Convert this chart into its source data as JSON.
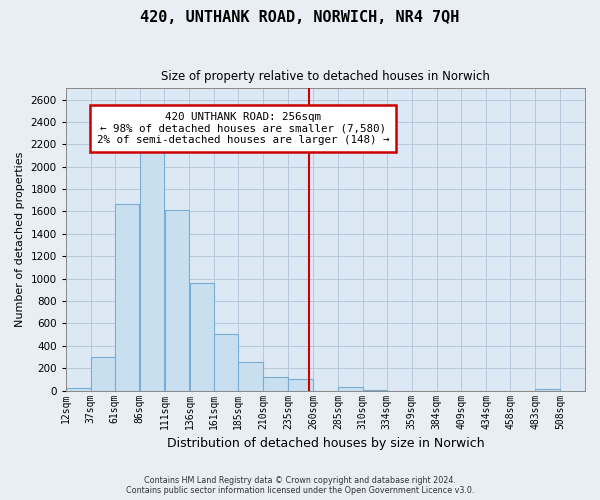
{
  "title": "420, UNTHANK ROAD, NORWICH, NR4 7QH",
  "subtitle": "Size of property relative to detached houses in Norwich",
  "xlabel": "Distribution of detached houses by size in Norwich",
  "ylabel": "Number of detached properties",
  "bar_left_edges": [
    12,
    37,
    61,
    86,
    111,
    136,
    161,
    185,
    210,
    235,
    260,
    285,
    310,
    334,
    359,
    384,
    409,
    434,
    458,
    483
  ],
  "bar_widths": [
    25,
    24,
    25,
    25,
    25,
    25,
    24,
    25,
    25,
    25,
    25,
    25,
    24,
    25,
    25,
    25,
    25,
    24,
    25,
    25
  ],
  "bar_heights": [
    20,
    300,
    1670,
    2150,
    1610,
    960,
    510,
    255,
    120,
    105,
    0,
    35,
    10,
    0,
    0,
    0,
    0,
    0,
    0,
    15
  ],
  "bar_color": "#c8dff0",
  "bar_edgecolor": "#7aadd4",
  "vline_x": 256,
  "vline_color": "#cc0000",
  "annotation_title": "420 UNTHANK ROAD: 256sqm",
  "annotation_line1": "← 98% of detached houses are smaller (7,580)",
  "annotation_line2": "2% of semi-detached houses are larger (148) →",
  "tick_labels": [
    "12sqm",
    "37sqm",
    "61sqm",
    "86sqm",
    "111sqm",
    "136sqm",
    "161sqm",
    "185sqm",
    "210sqm",
    "235sqm",
    "260sqm",
    "285sqm",
    "310sqm",
    "334sqm",
    "359sqm",
    "384sqm",
    "409sqm",
    "434sqm",
    "458sqm",
    "483sqm",
    "508sqm"
  ],
  "tick_positions": [
    12,
    37,
    61,
    86,
    111,
    136,
    161,
    185,
    210,
    235,
    260,
    285,
    310,
    334,
    359,
    384,
    409,
    434,
    458,
    483,
    508
  ],
  "ylim": [
    0,
    2700
  ],
  "xlim": [
    12,
    533
  ],
  "yticks": [
    0,
    200,
    400,
    600,
    800,
    1000,
    1200,
    1400,
    1600,
    1800,
    2000,
    2200,
    2400,
    2600
  ],
  "footer_line1": "Contains HM Land Registry data © Crown copyright and database right 2024.",
  "footer_line2": "Contains public sector information licensed under the Open Government Licence v3.0.",
  "bg_color": "#e8eef4",
  "plot_bg_color": "#dce8f3",
  "grid_color": "#b0c4d8"
}
